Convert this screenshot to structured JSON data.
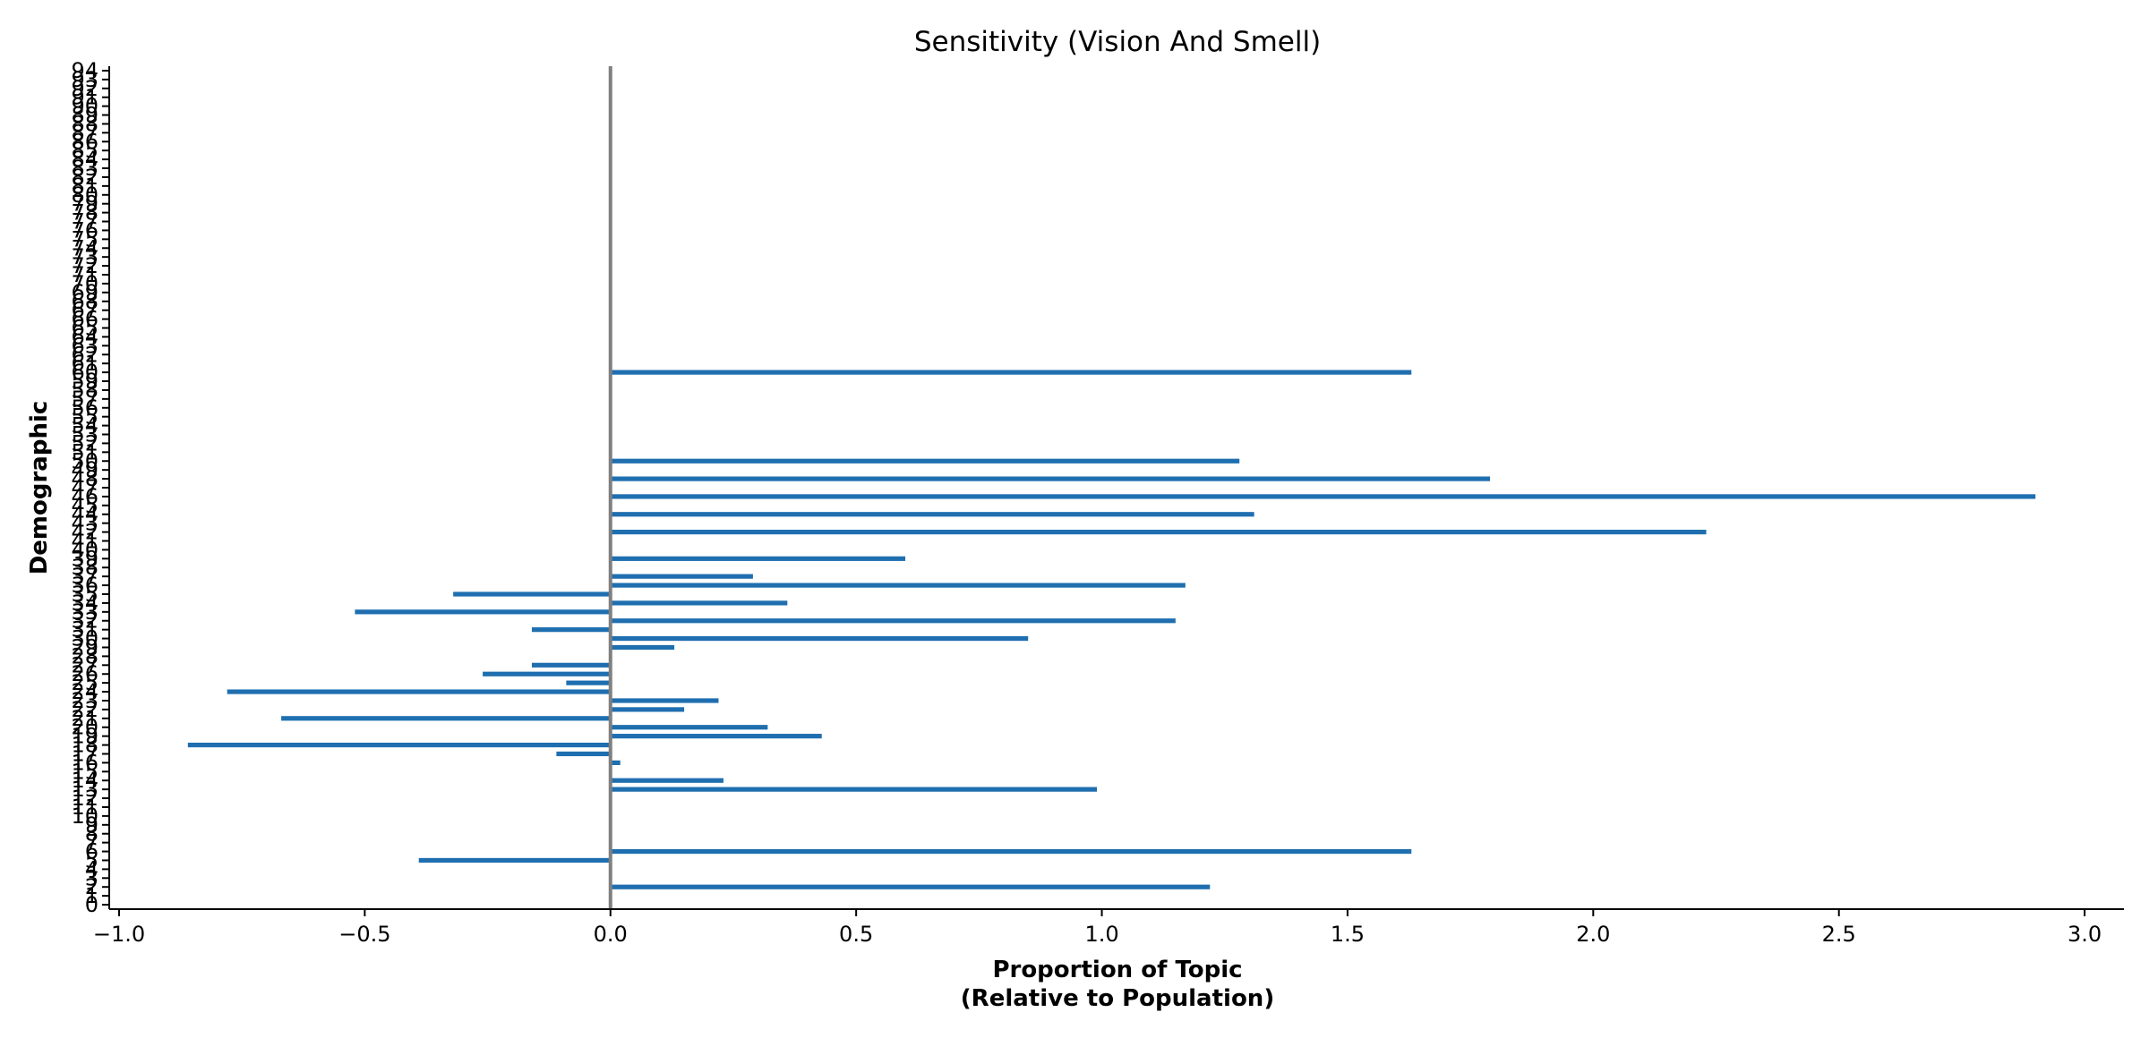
{
  "chart_data": {
    "type": "bar",
    "orientation": "horizontal",
    "title": "Sensitivity (Vision And Smell)",
    "xlabel_line1": "Proportion of Topic",
    "xlabel_line2": "(Relative to Population)",
    "ylabel": "Demographic",
    "xlim": [
      -1.02,
      3.08
    ],
    "ylim": [
      -0.5,
      94.5
    ],
    "x_ticks": [
      -1.0,
      -0.5,
      0.0,
      0.5,
      1.0,
      1.5,
      2.0,
      2.5,
      3.0
    ],
    "x_tick_labels": [
      "−1.0",
      "−0.5",
      "0.0",
      "0.5",
      "1.0",
      "1.5",
      "2.0",
      "2.5",
      "3.0"
    ],
    "y_tick_labels": [
      "0",
      "1",
      "2",
      "3",
      "4",
      "5",
      "6",
      "7",
      "8",
      "9",
      "10",
      "11",
      "12",
      "13",
      "14",
      "15",
      "16",
      "17",
      "18",
      "19",
      "20",
      "21",
      "22",
      "23",
      "24",
      "25",
      "26",
      "27",
      "28",
      "29",
      "30",
      "31",
      "32",
      "33",
      "34",
      "35",
      "36",
      "37",
      "38",
      "39",
      "40",
      "41",
      "42",
      "43",
      "44",
      "45",
      "46",
      "47",
      "48",
      "49",
      "50",
      "51",
      "52",
      "53",
      "54",
      "55",
      "56",
      "57",
      "58",
      "59",
      "60",
      "61",
      "62",
      "63",
      "64",
      "65",
      "66",
      "67",
      "68",
      "69",
      "70",
      "71",
      "72",
      "73",
      "74",
      "75",
      "76",
      "77",
      "78",
      "79",
      "80",
      "81",
      "82",
      "83",
      "84",
      "85",
      "86",
      "87",
      "88",
      "89",
      "90",
      "91",
      "92",
      "93",
      "94"
    ],
    "zero_line": true,
    "grid": false,
    "color": "#1f6fb0",
    "zero_line_color": "#808080",
    "values": [
      0,
      0,
      1.22,
      0,
      0,
      -0.39,
      1.63,
      0,
      0,
      0,
      0,
      0,
      0,
      0.99,
      0.23,
      0,
      0.02,
      -0.11,
      -0.86,
      0.43,
      0.32,
      -0.67,
      0.15,
      0.22,
      -0.78,
      -0.09,
      -0.26,
      -0.16,
      0,
      0.13,
      0.85,
      -0.16,
      1.15,
      -0.52,
      0.36,
      -0.32,
      1.17,
      0.29,
      0,
      0.6,
      0,
      0,
      2.23,
      0,
      1.31,
      0,
      2.9,
      0,
      1.79,
      0,
      1.28,
      0,
      0,
      0,
      0,
      0,
      0,
      0,
      0,
      0,
      1.63,
      0,
      0,
      0,
      0,
      0,
      0,
      0,
      0,
      0,
      0,
      0,
      0,
      0,
      0,
      0,
      0,
      0,
      0,
      0,
      0,
      0,
      0,
      0,
      0,
      0,
      0,
      0,
      0,
      0,
      0,
      0,
      0,
      0,
      0
    ]
  }
}
